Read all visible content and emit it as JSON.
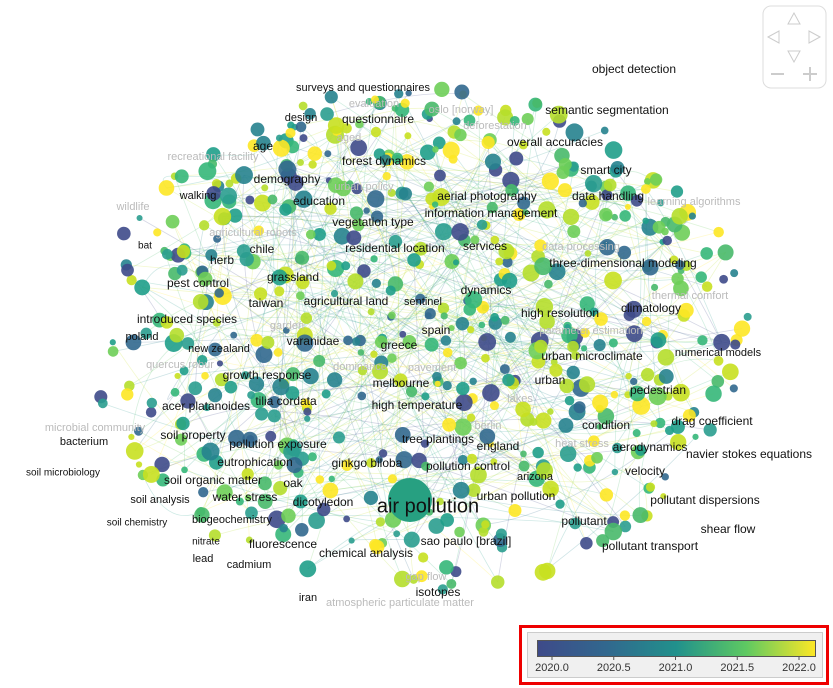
{
  "labels": [
    {
      "text": "object detection"
    },
    {
      "text": "surveys and questionnaires"
    },
    {
      "text": "evaluation"
    },
    {
      "text": "oslo [norway]"
    },
    {
      "text": "semantic segmentation"
    },
    {
      "text": "design"
    },
    {
      "text": "questionnaire"
    },
    {
      "text": "deforestation"
    },
    {
      "text": "aged"
    },
    {
      "text": "overall accuracies"
    },
    {
      "text": "age"
    },
    {
      "text": "recreational facility"
    },
    {
      "text": "forest dynamics"
    },
    {
      "text": "smart city"
    },
    {
      "text": "demography"
    },
    {
      "text": "urban policy"
    },
    {
      "text": "walking"
    },
    {
      "text": "aerial photography"
    },
    {
      "text": "data handling"
    },
    {
      "text": "learning algorithms"
    },
    {
      "text": "wildlife"
    },
    {
      "text": "education"
    },
    {
      "text": "information management"
    },
    {
      "text": "vegetation type"
    },
    {
      "text": "agricultural robots"
    },
    {
      "text": "chile"
    },
    {
      "text": "residential location"
    },
    {
      "text": "services"
    },
    {
      "text": "data processing"
    },
    {
      "text": "bat"
    },
    {
      "text": "herb"
    },
    {
      "text": "three-dimensional modeling"
    },
    {
      "text": "grassland"
    },
    {
      "text": "pest control"
    },
    {
      "text": "dynamics"
    },
    {
      "text": "agricultural land"
    },
    {
      "text": "taiwan"
    },
    {
      "text": "sentinel"
    },
    {
      "text": "high resolution"
    },
    {
      "text": "climatology"
    },
    {
      "text": "introduced species"
    },
    {
      "text": "thermal comfort"
    },
    {
      "text": "garden"
    },
    {
      "text": "spain"
    },
    {
      "text": "parameter estimation"
    },
    {
      "text": "poland"
    },
    {
      "text": "varanidae"
    },
    {
      "text": "new zealand"
    },
    {
      "text": "greece"
    },
    {
      "text": "numerical models"
    },
    {
      "text": "quercus robur"
    },
    {
      "text": "urban microclimate"
    },
    {
      "text": "dominance"
    },
    {
      "text": "pavement"
    },
    {
      "text": "growth response"
    },
    {
      "text": "melbourne"
    },
    {
      "text": "urban"
    },
    {
      "text": "pedestrian"
    },
    {
      "text": "acer platanoides"
    },
    {
      "text": "tilia cordata"
    },
    {
      "text": "high temperature"
    },
    {
      "text": "lakes"
    },
    {
      "text": "drag coefficient"
    },
    {
      "text": "microbial community"
    },
    {
      "text": "condition"
    },
    {
      "text": "bacterium"
    },
    {
      "text": "soil property"
    },
    {
      "text": "tree plantings"
    },
    {
      "text": "berlin"
    },
    {
      "text": "england"
    },
    {
      "text": "aerodynamics"
    },
    {
      "text": "navier stokes equations"
    },
    {
      "text": "pollution exposure"
    },
    {
      "text": "heat stress"
    },
    {
      "text": "soil microbiology"
    },
    {
      "text": "eutrophication"
    },
    {
      "text": "ginkgo biloba"
    },
    {
      "text": "pollution control"
    },
    {
      "text": "arizona"
    },
    {
      "text": "velocity"
    },
    {
      "text": "soil organic matter"
    },
    {
      "text": "oak"
    },
    {
      "text": "water stress"
    },
    {
      "text": "soil analysis"
    },
    {
      "text": "dicotyledon"
    },
    {
      "text": "air pollution"
    },
    {
      "text": "urban pollution"
    },
    {
      "text": "pollutant dispersions"
    },
    {
      "text": "biogeochemistry"
    },
    {
      "text": "soil chemistry"
    },
    {
      "text": "pollutant"
    },
    {
      "text": "shear flow"
    },
    {
      "text": "nitrate"
    },
    {
      "text": "fluorescence"
    },
    {
      "text": "sao paulo [brazil]"
    },
    {
      "text": "pollutant transport"
    },
    {
      "text": "lead"
    },
    {
      "text": "chemical analysis"
    },
    {
      "text": "cadmium"
    },
    {
      "text": "gap flow"
    },
    {
      "text": "isotopes"
    },
    {
      "text": "iran"
    },
    {
      "text": "atmospheric particulate matter"
    }
  ],
  "legend": {
    "ticks": [
      {
        "value": 2020,
        "label": "2020.0"
      },
      {
        "value": 2020.5,
        "label": "2020.5"
      },
      {
        "value": 2021,
        "label": "2021.0"
      },
      {
        "value": 2021.5,
        "label": "2021.5"
      },
      {
        "value": 2022,
        "label": "2022.0"
      }
    ]
  }
}
